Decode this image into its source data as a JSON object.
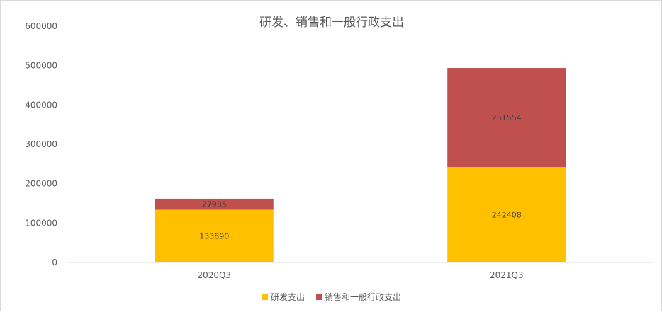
{
  "chart_data": {
    "type": "bar",
    "stacked": true,
    "title": "研发、销售和一般行政支出",
    "categories": [
      "2020Q3",
      "2021Q3"
    ],
    "series": [
      {
        "name": "研发支出",
        "values": [
          133890,
          242408
        ],
        "color": "#FFC000"
      },
      {
        "name": "销售和一般行政支出",
        "values": [
          27935,
          251554
        ],
        "color": "#C0504D"
      }
    ],
    "ylim": [
      0,
      600000
    ],
    "yticks": [
      0,
      100000,
      200000,
      300000,
      400000,
      500000,
      600000
    ],
    "data_labels": true,
    "grid": false,
    "legend_position": "bottom"
  }
}
